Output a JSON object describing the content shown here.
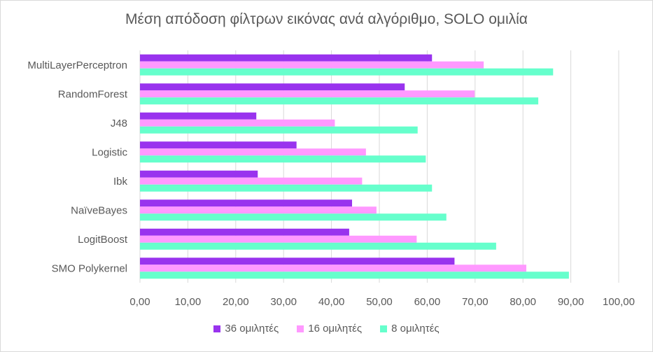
{
  "chart_data": {
    "type": "bar",
    "orientation": "horizontal",
    "title": "Μέση απόδοση φίλτρων εικόνας ανά αλγόριθμο, SOLO ομιλία",
    "categories": [
      "MultiLayerPerceptron",
      "RandomForest",
      "J48",
      "Logistic",
      "Ibk",
      "NaïveBayes",
      "LogitBoost",
      "SMO Polykernel"
    ],
    "series": [
      {
        "name": "36 ομιλητές",
        "color": "#9933ee",
        "values": [
          61.0,
          55.3,
          24.3,
          32.7,
          24.6,
          44.3,
          43.7,
          65.7
        ]
      },
      {
        "name": "16 ομιλητές",
        "color": "#ff99ff",
        "values": [
          71.8,
          69.9,
          40.7,
          47.2,
          46.4,
          49.4,
          57.8,
          80.7
        ]
      },
      {
        "name": "8 ομιλητές",
        "color": "#66ffcc",
        "values": [
          86.3,
          83.2,
          58.0,
          59.7,
          61.0,
          64.0,
          74.4,
          89.6
        ]
      }
    ],
    "xlim": [
      0,
      100
    ],
    "xticks": [
      "0,00",
      "10,00",
      "20,00",
      "30,00",
      "40,00",
      "50,00",
      "60,00",
      "70,00",
      "80,00",
      "90,00",
      "100,00"
    ],
    "grid": true,
    "legend_position": "bottom"
  }
}
